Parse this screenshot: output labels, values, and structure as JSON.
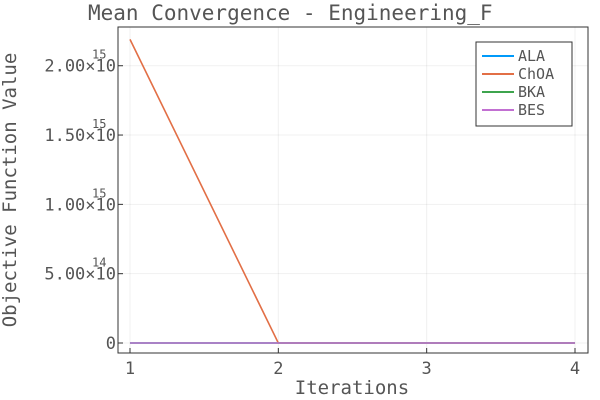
{
  "chart_data": {
    "type": "line",
    "title": "Mean Convergence - Engineering_F",
    "xlabel": "Iterations",
    "ylabel": "Objective Function Value",
    "x": [
      1,
      2,
      3,
      4
    ],
    "xlim": [
      1,
      4
    ],
    "ylim": [
      0,
      2200000000000000
    ],
    "xticks": [
      {
        "value": 1,
        "label": "1"
      },
      {
        "value": 2,
        "label": "2"
      },
      {
        "value": 3,
        "label": "3"
      },
      {
        "value": 4,
        "label": "4"
      }
    ],
    "yticks": [
      {
        "value": 0,
        "base": "0",
        "exp": ""
      },
      {
        "value": 500000000000000,
        "base": "5.00×10",
        "exp": "14"
      },
      {
        "value": 1000000000000000,
        "base": "1.00×10",
        "exp": "15"
      },
      {
        "value": 1500000000000000,
        "base": "1.50×10",
        "exp": "15"
      },
      {
        "value": 2000000000000000,
        "base": "2.00×10",
        "exp": "15"
      }
    ],
    "grid": true,
    "legend_position": "top-right",
    "series": [
      {
        "name": "ALA",
        "color": "#009AFA",
        "values": [
          0,
          0,
          0,
          0
        ]
      },
      {
        "name": "ChOA",
        "color": "#E26F46",
        "values": [
          2190000000000000,
          0,
          0,
          0
        ]
      },
      {
        "name": "BKA",
        "color": "#3EA44E",
        "values": [
          0,
          0,
          0,
          0
        ]
      },
      {
        "name": "BES",
        "color": "#C270D2",
        "values": [
          0,
          0,
          0,
          0
        ]
      }
    ]
  }
}
